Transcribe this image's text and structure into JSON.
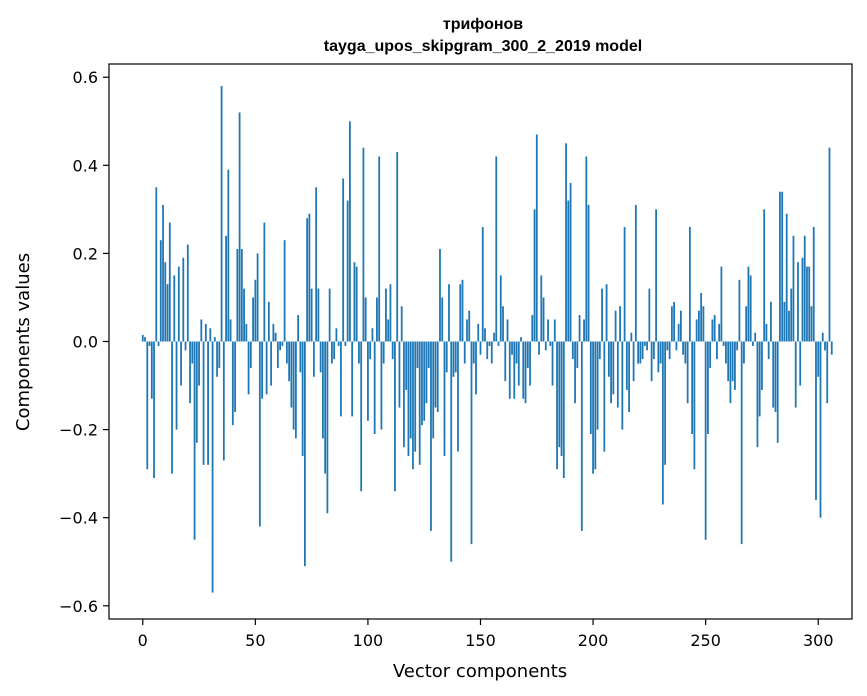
{
  "chart_data": {
    "type": "bar",
    "title": "трифонов",
    "subtitle": "tayga_upos_skipgram_300_2_2019 model",
    "xlabel": "Vector components",
    "ylabel": "Components values",
    "xlim": [
      -15,
      315
    ],
    "ylim": [
      -0.63,
      0.63
    ],
    "xticks": [
      0,
      50,
      100,
      150,
      200,
      250,
      300
    ],
    "xtick_labels": [
      "0",
      "50",
      "100",
      "150",
      "200",
      "250",
      "300"
    ],
    "yticks": [
      -0.6,
      -0.4,
      -0.2,
      0.0,
      0.2,
      0.4,
      0.6
    ],
    "ytick_labels": [
      "−0.6",
      "−0.4",
      "−0.2",
      "0.0",
      "0.2",
      "0.4",
      "0.6"
    ],
    "grid": false,
    "bar_color": "#1f77b4",
    "x_start": 0,
    "values": [
      0.015,
      0.01,
      -0.29,
      -0.01,
      -0.13,
      -0.31,
      0.35,
      -0.01,
      0.23,
      0.31,
      0.18,
      0.13,
      0.27,
      -0.3,
      0.15,
      -0.2,
      0.17,
      -0.1,
      0.19,
      -0.02,
      0.22,
      -0.14,
      -0.05,
      -0.45,
      -0.23,
      -0.1,
      0.05,
      -0.28,
      0.04,
      -0.28,
      0.03,
      -0.57,
      0.01,
      -0.08,
      -0.06,
      0.58,
      -0.27,
      0.24,
      0.39,
      0.05,
      -0.19,
      -0.16,
      0.21,
      0.52,
      0.21,
      0.12,
      0.04,
      -0.12,
      -0.06,
      0.1,
      0.14,
      0.2,
      -0.42,
      -0.13,
      0.27,
      -0.12,
      0.09,
      -0.1,
      0.04,
      0.02,
      -0.06,
      -0.02,
      -0.01,
      0.23,
      -0.05,
      -0.09,
      -0.15,
      -0.2,
      -0.22,
      0.06,
      -0.07,
      -0.26,
      -0.51,
      0.28,
      0.29,
      0.12,
      -0.08,
      0.35,
      0.12,
      -0.07,
      -0.22,
      -0.3,
      -0.39,
      0.12,
      -0.05,
      -0.04,
      0.03,
      -0.01,
      -0.17,
      0.37,
      -0.01,
      0.32,
      0.5,
      -0.17,
      0.18,
      0.17,
      -0.05,
      -0.34,
      0.44,
      0.1,
      -0.18,
      -0.04,
      0.03,
      -0.21,
      0.1,
      0.42,
      -0.2,
      -0.05,
      0.12,
      0.05,
      0.13,
      -0.04,
      -0.34,
      0.43,
      -0.15,
      0.08,
      -0.24,
      -0.11,
      -0.26,
      -0.22,
      -0.29,
      -0.25,
      -0.06,
      -0.28,
      -0.19,
      -0.18,
      -0.14,
      -0.06,
      -0.43,
      -0.22,
      -0.15,
      -0.16,
      0.21,
      0.1,
      -0.26,
      -0.07,
      0.13,
      -0.5,
      -0.08,
      -0.07,
      -0.25,
      0.13,
      0.14,
      -0.05,
      0.05,
      0.07,
      -0.46,
      -0.05,
      -0.12,
      0.04,
      -0.03,
      0.26,
      0.03,
      -0.04,
      -0.01,
      -0.05,
      0.02,
      0.42,
      -0.01,
      0.15,
      0.08,
      -0.09,
      0.05,
      -0.13,
      -0.03,
      -0.13,
      -0.05,
      -0.1,
      0.01,
      -0.13,
      -0.14,
      -0.06,
      -0.1,
      0.06,
      0.3,
      0.47,
      -0.03,
      0.15,
      0.1,
      -0.02,
      0.05,
      -0.01,
      -0.1,
      0.05,
      -0.29,
      -0.24,
      -0.26,
      -0.31,
      0.45,
      0.32,
      0.36,
      -0.04,
      -0.14,
      -0.06,
      0.06,
      -0.43,
      0.05,
      0.42,
      0.31,
      -0.21,
      -0.3,
      -0.29,
      -0.2,
      -0.04,
      0.12,
      -0.25,
      0.13,
      -0.08,
      -0.14,
      -0.12,
      0.07,
      -0.15,
      0.08,
      -0.2,
      0.26,
      -0.11,
      -0.16,
      0.02,
      -0.09,
      0.31,
      -0.05,
      -0.05,
      -0.04,
      -0.01,
      -0.02,
      0.12,
      -0.09,
      -0.04,
      0.3,
      -0.07,
      -0.05,
      -0.37,
      -0.28,
      -0.02,
      -0.04,
      0.08,
      0.09,
      -0.02,
      0.04,
      0.07,
      -0.03,
      -0.05,
      -0.14,
      0.26,
      -0.21,
      -0.29,
      0.05,
      0.07,
      0.11,
      0.08,
      -0.45,
      -0.21,
      -0.06,
      0.05,
      0.06,
      -0.04,
      0.04,
      0.17,
      -0.01,
      -0.05,
      -0.09,
      -0.14,
      -0.09,
      -0.11,
      -0.02,
      0.14,
      -0.46,
      -0.05,
      0.08,
      0.17,
      0.15,
      -0.01,
      0.02,
      -0.24,
      -0.17,
      -0.11,
      0.3,
      0.04,
      -0.04,
      0.09,
      -0.15,
      -0.16,
      -0.23,
      0.34,
      0.34,
      0.09,
      0.29,
      0.07,
      0.12,
      0.24,
      -0.15,
      0.18,
      -0.1,
      0.19,
      0.24,
      0.17,
      0.17,
      0.08,
      0.26,
      -0.36,
      -0.08,
      -0.4,
      0.02,
      -0.02,
      -0.14,
      0.44,
      -0.03
    ]
  }
}
